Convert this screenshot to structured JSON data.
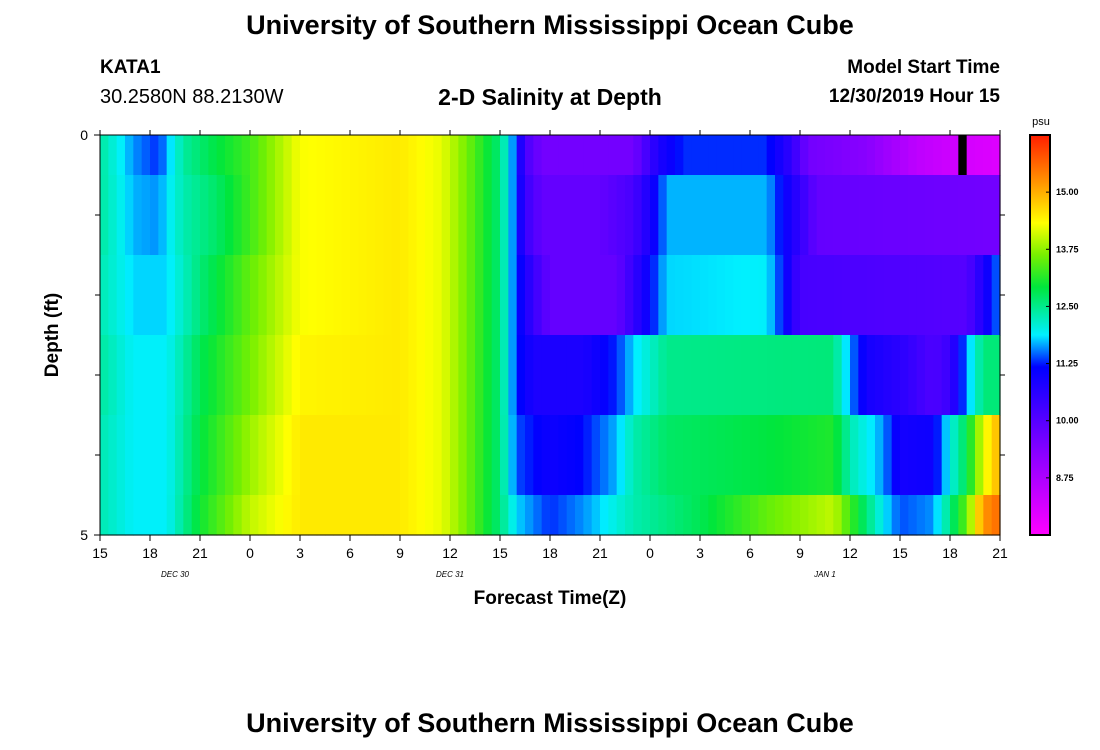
{
  "header": {
    "title": "University of Southern Mississippi Ocean Cube",
    "station": "KATA1",
    "coords": "30.2580N 88.2130W",
    "plot_title": "2-D Salinity at Depth",
    "model_start_label": "Model Start Time",
    "model_start_value": "12/30/2019 Hour 15"
  },
  "footer": {
    "title": "University of Southern Mississippi Ocean Cube"
  },
  "chart_data": {
    "type": "heatmap",
    "title": "2-D Salinity at Depth",
    "xlabel": "Forecast Time(Z)",
    "ylabel": "Depth (ft)",
    "x_range_hours": [
      0,
      54
    ],
    "x_ticks": [
      {
        "hour": 0,
        "label": "15"
      },
      {
        "hour": 3,
        "label": "18"
      },
      {
        "hour": 6,
        "label": "21"
      },
      {
        "hour": 9,
        "label": "0"
      },
      {
        "hour": 12,
        "label": "3"
      },
      {
        "hour": 15,
        "label": "6"
      },
      {
        "hour": 18,
        "label": "9"
      },
      {
        "hour": 21,
        "label": "12"
      },
      {
        "hour": 24,
        "label": "15"
      },
      {
        "hour": 27,
        "label": "18"
      },
      {
        "hour": 30,
        "label": "21"
      },
      {
        "hour": 33,
        "label": "0"
      },
      {
        "hour": 36,
        "label": "3"
      },
      {
        "hour": 39,
        "label": "6"
      },
      {
        "hour": 42,
        "label": "9"
      },
      {
        "hour": 45,
        "label": "12"
      },
      {
        "hour": 48,
        "label": "15"
      },
      {
        "hour": 51,
        "label": "18"
      },
      {
        "hour": 54,
        "label": "21"
      }
    ],
    "date_labels": [
      {
        "hour": 4.5,
        "label": "DEC 30"
      },
      {
        "hour": 21,
        "label": "DEC 31"
      },
      {
        "hour": 43.5,
        "label": "JAN 1"
      }
    ],
    "y_range": [
      0,
      5
    ],
    "y_tick_labels": [
      {
        "value": 0,
        "label": "0"
      },
      {
        "value": 5,
        "label": "5"
      }
    ],
    "y_minor_ticks": [
      1,
      2,
      3,
      4
    ],
    "colorbar": {
      "unit": "psu",
      "range": [
        7.5,
        16.25
      ],
      "ticks": [
        "15.00",
        "13.75",
        "12.50",
        "11.25",
        "10.00",
        "8.75"
      ],
      "tick_values": [
        15,
        13.75,
        12.5,
        11.25,
        10,
        8.75
      ]
    },
    "salinity_psu": {
      "layer_0_ft": [
        [
          0,
          12.4
        ],
        [
          2,
          11.6
        ],
        [
          3.5,
          11.3
        ],
        [
          5,
          12.4
        ],
        [
          7,
          12.9
        ],
        [
          9,
          13.3
        ],
        [
          12,
          14.3
        ],
        [
          18,
          14.5
        ],
        [
          20.5,
          14.2
        ],
        [
          22,
          13.6
        ],
        [
          24,
          12.6
        ],
        [
          25,
          11.3
        ],
        [
          25.5,
          10.2
        ],
        [
          26.5,
          9.6
        ],
        [
          32,
          9.6
        ],
        [
          33.5,
          10.8
        ],
        [
          35,
          11.3
        ],
        [
          40,
          11.3
        ],
        [
          41.5,
          10.5
        ],
        [
          42.5,
          9.6
        ],
        [
          46,
          9.3
        ],
        [
          49,
          8.5
        ],
        [
          51.5,
          8.2
        ],
        [
          54,
          8.0
        ]
      ],
      "layer_1_ft": [
        [
          0,
          12.4
        ],
        [
          2,
          11.7
        ],
        [
          3.5,
          11.6
        ],
        [
          5,
          12.3
        ],
        [
          7,
          12.7
        ],
        [
          9,
          13.3
        ],
        [
          12,
          14.3
        ],
        [
          18,
          14.5
        ],
        [
          20.5,
          14.2
        ],
        [
          22,
          13.6
        ],
        [
          24,
          12.6
        ],
        [
          25,
          11.3
        ],
        [
          25.5,
          10.4
        ],
        [
          26.5,
          9.8
        ],
        [
          30,
          9.8
        ],
        [
          32,
          10.2
        ],
        [
          33.5,
          11.2
        ],
        [
          34,
          11.7
        ],
        [
          40,
          11.7
        ],
        [
          42,
          10.5
        ],
        [
          43,
          9.8
        ],
        [
          54,
          9.6
        ]
      ],
      "layer_2_ft": [
        [
          0,
          12.3
        ],
        [
          2,
          11.8
        ],
        [
          4,
          11.8
        ],
        [
          6,
          12.6
        ],
        [
          9,
          13.5
        ],
        [
          12,
          14.3
        ],
        [
          18,
          14.5
        ],
        [
          20.5,
          14.2
        ],
        [
          22,
          13.6
        ],
        [
          24,
          12.6
        ],
        [
          25,
          11.3
        ],
        [
          26,
          10.4
        ],
        [
          27,
          9.8
        ],
        [
          31,
          9.8
        ],
        [
          32.5,
          10.8
        ],
        [
          34,
          11.8
        ],
        [
          40,
          11.9
        ],
        [
          41,
          11.2
        ],
        [
          42,
          10.2
        ],
        [
          52,
          10.0
        ],
        [
          53,
          10.8
        ],
        [
          54,
          11.6
        ]
      ],
      "layer_3_ft": [
        [
          0,
          12.4
        ],
        [
          2,
          11.9
        ],
        [
          4,
          11.9
        ],
        [
          6,
          12.8
        ],
        [
          9,
          13.6
        ],
        [
          12,
          14.4
        ],
        [
          18,
          14.5
        ],
        [
          20.5,
          14.2
        ],
        [
          22,
          13.6
        ],
        [
          24,
          12.6
        ],
        [
          25,
          11.3
        ],
        [
          26,
          10.8
        ],
        [
          29,
          10.8
        ],
        [
          31,
          11.3
        ],
        [
          32,
          11.8
        ],
        [
          34,
          12.5
        ],
        [
          44,
          12.6
        ],
        [
          45,
          11.6
        ],
        [
          46,
          10.9
        ],
        [
          48,
          10.6
        ],
        [
          50,
          10.1
        ],
        [
          51,
          10.4
        ],
        [
          52,
          11.6
        ],
        [
          53,
          12.6
        ],
        [
          54,
          12.6
        ]
      ],
      "layer_4_ft": [
        [
          0,
          12.3
        ],
        [
          2,
          11.9
        ],
        [
          4,
          11.9
        ],
        [
          6,
          12.9
        ],
        [
          9,
          13.8
        ],
        [
          12,
          14.5
        ],
        [
          18,
          14.5
        ],
        [
          20.5,
          14.2
        ],
        [
          22,
          13.6
        ],
        [
          24,
          12.6
        ],
        [
          25,
          11.4
        ],
        [
          27,
          11.0
        ],
        [
          29,
          11.2
        ],
        [
          31,
          11.7
        ],
        [
          32,
          12.3
        ],
        [
          34,
          12.7
        ],
        [
          40,
          12.9
        ],
        [
          44,
          13.1
        ],
        [
          45,
          12.3
        ],
        [
          47,
          11.6
        ],
        [
          48,
          10.9
        ],
        [
          50,
          11.0
        ],
        [
          51,
          12.0
        ],
        [
          52,
          12.8
        ],
        [
          53,
          14.2
        ],
        [
          54,
          15.0
        ]
      ],
      "layer_5_ft": [
        [
          0,
          12.3
        ],
        [
          2,
          11.9
        ],
        [
          4,
          11.9
        ],
        [
          6,
          13.0
        ],
        [
          9,
          14.0
        ],
        [
          12,
          14.5
        ],
        [
          18,
          14.5
        ],
        [
          20.5,
          14.2
        ],
        [
          22,
          13.6
        ],
        [
          24,
          12.6
        ],
        [
          25,
          11.8
        ],
        [
          27,
          11.3
        ],
        [
          29,
          11.6
        ],
        [
          30,
          11.8
        ],
        [
          32,
          12.3
        ],
        [
          36,
          12.8
        ],
        [
          40,
          13.5
        ],
        [
          44,
          14.0
        ],
        [
          45,
          13.3
        ],
        [
          46,
          12.6
        ],
        [
          47,
          11.9
        ],
        [
          48,
          11.4
        ],
        [
          50,
          11.6
        ],
        [
          52,
          13.5
        ],
        [
          53,
          15.2
        ],
        [
          54,
          15.6
        ]
      ]
    },
    "missing_cells": [
      {
        "x_hour": 51.5,
        "layer": 0
      }
    ]
  }
}
